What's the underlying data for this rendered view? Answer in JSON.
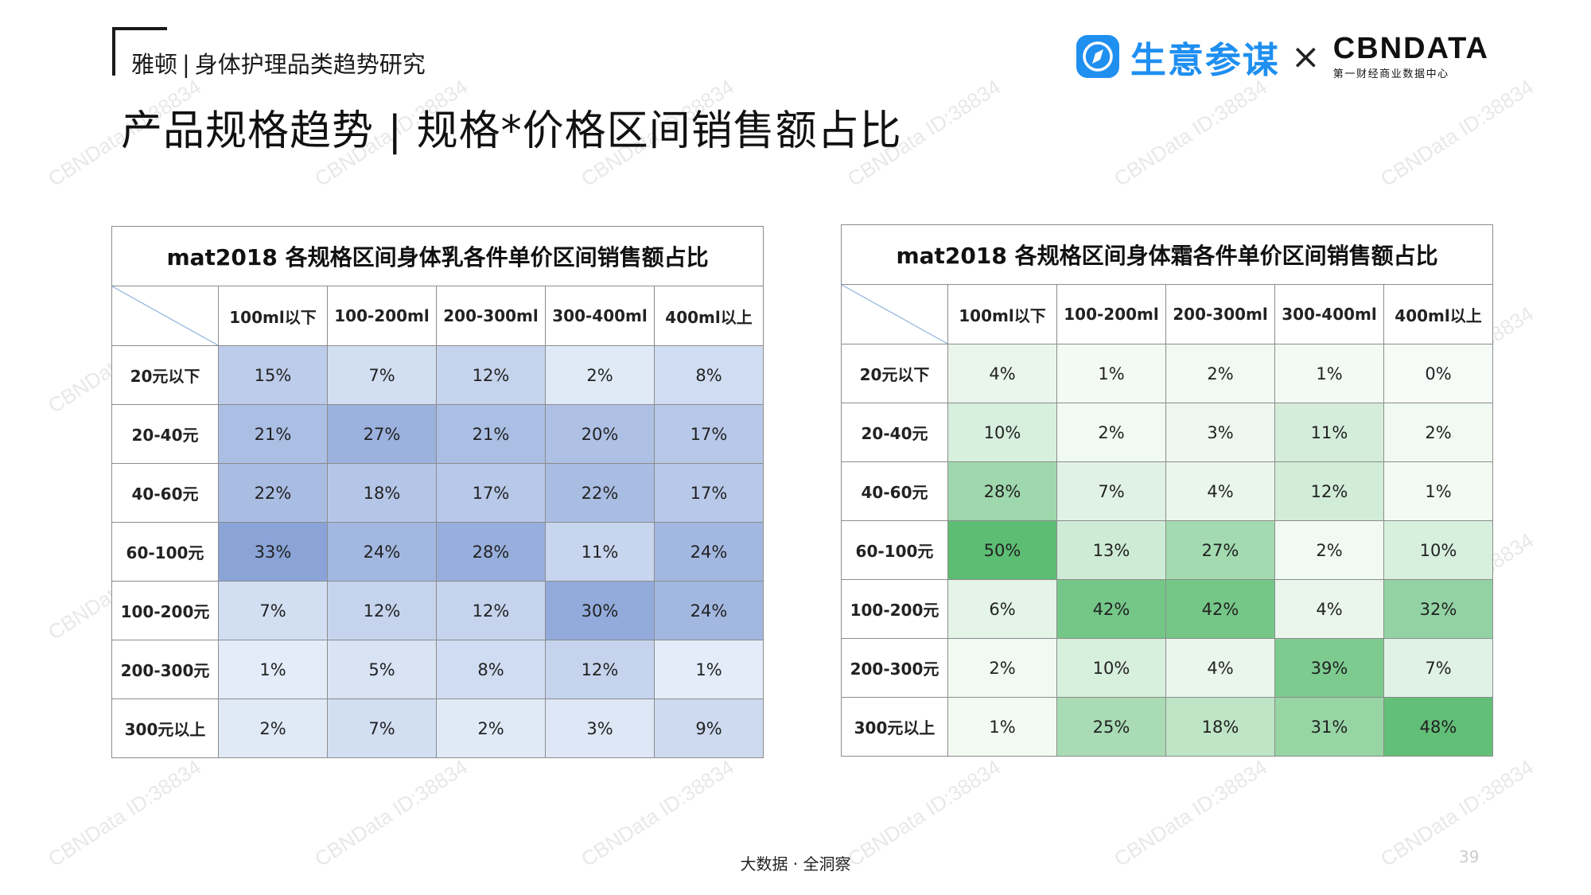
{
  "header": {
    "brand": "雅顿",
    "topic": "身体护理品类趋势研究",
    "title": "产品规格趋势 | 规格*价格区间销售额占比"
  },
  "logos": {
    "sycm": "生意参谋",
    "times": "×",
    "cbn": "CBNDATA",
    "cbn_sub": "第一财经商业数据中心"
  },
  "watermark": "CBNData ID:38834",
  "footer": {
    "tagline": "大数据 · 全洞察",
    "page": "39"
  },
  "colors": {
    "lotion_scale": "#8fa8d9",
    "cream_scale": "#5fbf76",
    "border": "#8c8c8c",
    "sycm_blue": "#1f8ff0"
  },
  "chart_data": [
    {
      "type": "heatmap",
      "title": "mat2018 各规格区间身体乳各件单价区间销售额占比",
      "columns": [
        "100ml以下",
        "100-200ml",
        "200-300ml",
        "300-400ml",
        "400ml以上"
      ],
      "rows": [
        "20元以下",
        "20-40元",
        "40-60元",
        "60-100元",
        "100-200元",
        "200-300元",
        "300元以上"
      ],
      "values": [
        [
          15,
          7,
          12,
          2,
          8
        ],
        [
          21,
          27,
          21,
          20,
          17
        ],
        [
          22,
          18,
          17,
          22,
          17
        ],
        [
          33,
          24,
          28,
          11,
          24
        ],
        [
          7,
          12,
          12,
          30,
          24
        ],
        [
          1,
          5,
          8,
          12,
          1
        ],
        [
          2,
          7,
          2,
          3,
          9
        ]
      ],
      "unit": "%",
      "color": "blue"
    },
    {
      "type": "heatmap",
      "title": "mat2018 各规格区间身体霜各件单价区间销售额占比",
      "columns": [
        "100ml以下",
        "100-200ml",
        "200-300ml",
        "300-400ml",
        "400ml以上"
      ],
      "rows": [
        "20元以下",
        "20-40元",
        "40-60元",
        "60-100元",
        "100-200元",
        "200-300元",
        "300元以上"
      ],
      "values": [
        [
          4,
          1,
          2,
          1,
          0
        ],
        [
          10,
          2,
          3,
          11,
          2
        ],
        [
          28,
          7,
          4,
          12,
          1
        ],
        [
          50,
          13,
          27,
          2,
          10
        ],
        [
          6,
          42,
          42,
          4,
          32
        ],
        [
          2,
          10,
          4,
          39,
          7
        ],
        [
          1,
          25,
          18,
          31,
          48
        ]
      ],
      "unit": "%",
      "color": "green"
    }
  ]
}
